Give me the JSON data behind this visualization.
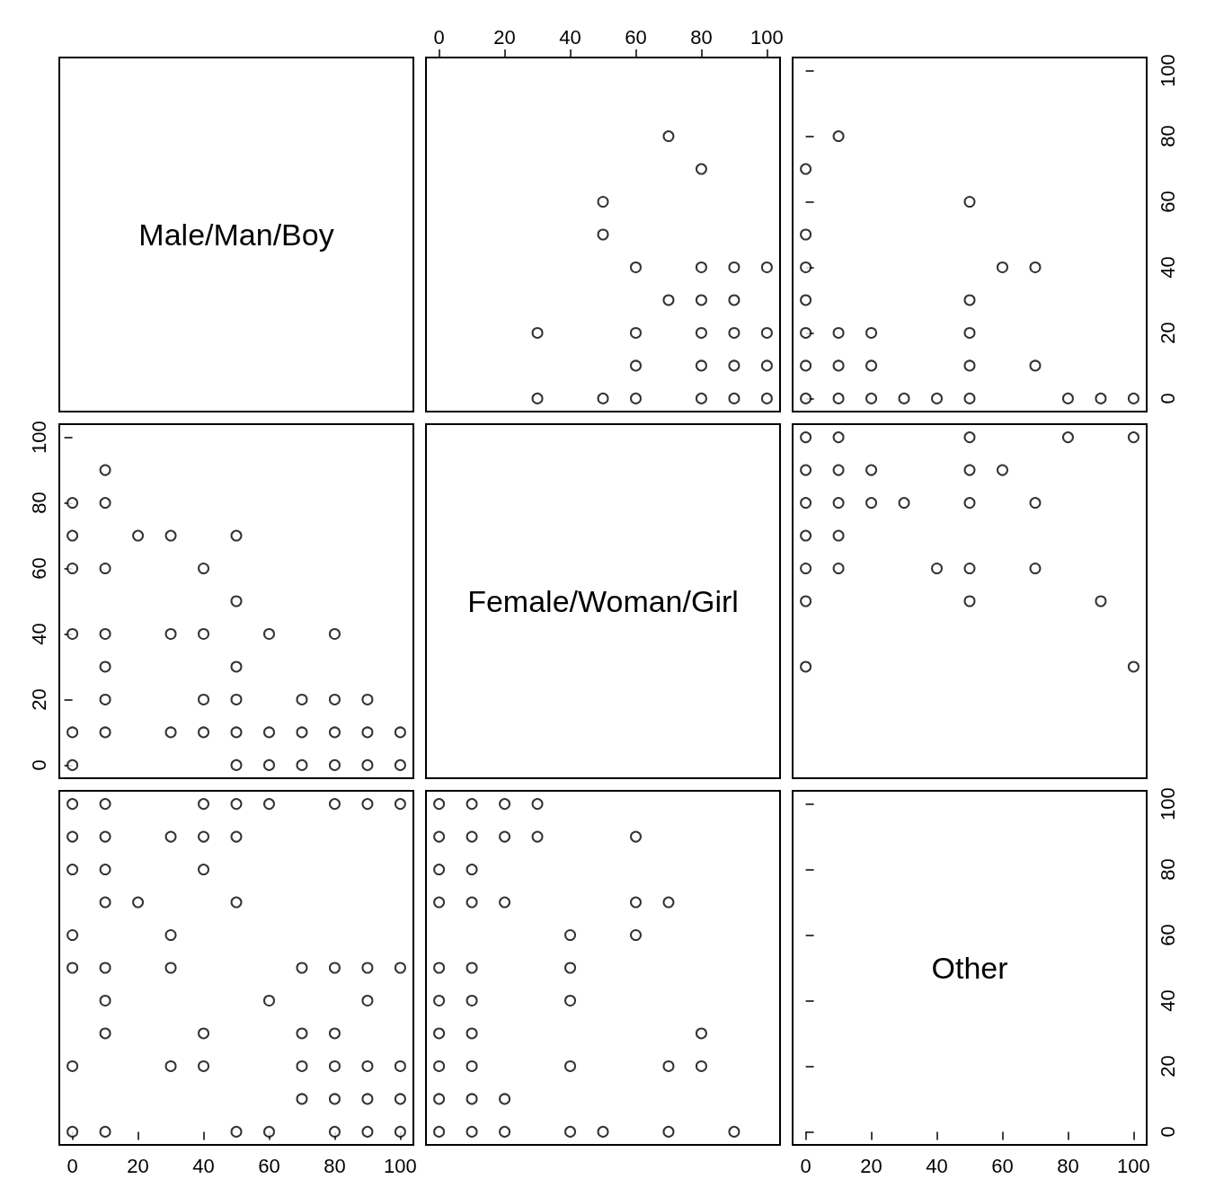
{
  "chart_data": [
    {
      "type": "other",
      "title": "Male/Man/Boy"
    },
    {
      "type": "scatter",
      "xlim": [
        -4,
        104
      ],
      "x2lim": [
        -4,
        104
      ],
      "x2ticks": [
        0,
        20,
        40,
        60,
        80,
        100
      ],
      "ylim": [
        -4,
        104
      ],
      "tick_labels": "x",
      "marker": "circle",
      "x": [
        30,
        30,
        50,
        50,
        50,
        60,
        60,
        60,
        60,
        70,
        70,
        80,
        80,
        80,
        80,
        80,
        80,
        90,
        90,
        90,
        90,
        90,
        100,
        100,
        100,
        100
      ],
      "series": [
        {
          "color": "#000000",
          "values": [
            20,
            0,
            60,
            50,
            0,
            40,
            20,
            10,
            0,
            80,
            30,
            70,
            40,
            30,
            20,
            10,
            0,
            40,
            30,
            20,
            10,
            0,
            40,
            20,
            10,
            0
          ]
        }
      ]
    },
    {
      "type": "scatter",
      "xlim": [
        -4,
        104
      ],
      "y2lim": [
        -4,
        104
      ],
      "y2ticks": [
        0,
        20,
        40,
        60,
        80,
        100
      ],
      "tick_labels": "y",
      "marker": "circle",
      "x": [
        0,
        0,
        0,
        0,
        0,
        0,
        0,
        10,
        10,
        10,
        10,
        20,
        20,
        20,
        30,
        40,
        50,
        50,
        50,
        50,
        50,
        60,
        70,
        70,
        80,
        90,
        100
      ],
      "series": [
        {
          "color": "#000000",
          "axis": "y2",
          "values": [
            70,
            50,
            40,
            30,
            20,
            10,
            0,
            80,
            20,
            10,
            0,
            20,
            10,
            0,
            0,
            0,
            60,
            30,
            20,
            10,
            0,
            40,
            40,
            10,
            0,
            0,
            0
          ]
        }
      ]
    },
    {
      "type": "scatter",
      "xlim": [
        -4,
        104
      ],
      "ylim": [
        -4,
        104
      ],
      "yticks": [
        0,
        20,
        40,
        60,
        80,
        100
      ],
      "tick_labels": "y",
      "marker": "circle",
      "x": [
        0,
        0,
        0,
        0,
        0,
        0,
        10,
        10,
        10,
        10,
        10,
        10,
        10,
        20,
        30,
        30,
        30,
        40,
        40,
        40,
        40,
        50,
        50,
        50,
        50,
        50,
        50,
        60,
        60,
        60,
        70,
        70,
        70,
        80,
        80,
        80,
        80,
        90,
        90,
        90,
        100,
        100
      ],
      "series": [
        {
          "color": "#000000",
          "values": [
            80,
            70,
            60,
            40,
            10,
            0,
            90,
            80,
            60,
            40,
            30,
            20,
            10,
            70,
            70,
            40,
            10,
            60,
            40,
            20,
            10,
            70,
            50,
            30,
            20,
            10,
            0,
            40,
            10,
            0,
            20,
            10,
            0,
            40,
            20,
            10,
            0,
            20,
            10,
            0,
            10,
            0
          ]
        }
      ]
    },
    {
      "type": "other",
      "title": "Female/Woman/Girl"
    },
    {
      "type": "scatter",
      "xlim": [
        -4,
        104
      ],
      "ylim": [
        -4,
        104
      ],
      "tick_labels": false,
      "marker": "circle",
      "x": [
        0,
        0,
        0,
        0,
        0,
        0,
        0,
        10,
        10,
        10,
        10,
        10,
        20,
        20,
        30,
        40,
        50,
        50,
        50,
        50,
        50,
        60,
        70,
        70,
        80,
        90,
        100,
        100
      ],
      "series": [
        {
          "color": "#000000",
          "values": [
            100,
            90,
            80,
            70,
            60,
            50,
            30,
            100,
            90,
            80,
            70,
            60,
            90,
            80,
            80,
            60,
            100,
            90,
            80,
            60,
            50,
            90,
            80,
            60,
            100,
            50,
            100,
            30
          ]
        }
      ]
    },
    {
      "type": "scatter",
      "xlim": [
        -4,
        104
      ],
      "xticks": [
        0,
        20,
        40,
        60,
        80,
        100
      ],
      "ylim": [
        -4,
        104
      ],
      "tick_labels": "x",
      "marker": "circle",
      "x": [
        0,
        0,
        0,
        0,
        0,
        0,
        0,
        10,
        10,
        10,
        10,
        10,
        10,
        10,
        10,
        20,
        30,
        30,
        30,
        30,
        40,
        40,
        40,
        40,
        40,
        50,
        50,
        50,
        50,
        60,
        60,
        60,
        70,
        70,
        70,
        70,
        80,
        80,
        80,
        80,
        80,
        80,
        90,
        90,
        90,
        90,
        90,
        90,
        100,
        100,
        100,
        100,
        100
      ],
      "series": [
        {
          "color": "#000000",
          "values": [
            100,
            90,
            80,
            60,
            50,
            20,
            0,
            100,
            90,
            80,
            70,
            50,
            40,
            30,
            0,
            70,
            90,
            60,
            50,
            20,
            100,
            90,
            80,
            30,
            20,
            100,
            90,
            70,
            0,
            100,
            40,
            0,
            50,
            30,
            20,
            10,
            100,
            50,
            30,
            20,
            10,
            0,
            100,
            50,
            40,
            20,
            10,
            0,
            100,
            50,
            20,
            10,
            0
          ]
        }
      ]
    },
    {
      "type": "scatter",
      "xlim": [
        -4,
        104
      ],
      "ylim": [
        -4,
        104
      ],
      "tick_labels": false,
      "marker": "circle",
      "x": [
        0,
        0,
        0,
        0,
        0,
        0,
        0,
        0,
        0,
        0,
        10,
        10,
        10,
        10,
        10,
        10,
        10,
        10,
        10,
        10,
        20,
        20,
        20,
        20,
        20,
        30,
        30,
        40,
        40,
        40,
        40,
        40,
        50,
        60,
        60,
        60,
        70,
        70,
        70,
        80,
        80,
        90
      ],
      "series": [
        {
          "color": "#000000",
          "values": [
            100,
            90,
            80,
            70,
            50,
            40,
            30,
            20,
            10,
            0,
            100,
            90,
            80,
            70,
            50,
            40,
            30,
            20,
            10,
            0,
            100,
            90,
            70,
            10,
            0,
            100,
            90,
            60,
            50,
            40,
            20,
            0,
            0,
            90,
            70,
            60,
            70,
            20,
            0,
            30,
            20,
            0
          ]
        }
      ]
    },
    {
      "type": "scatter",
      "title": "Other",
      "xlim": [
        -4,
        104
      ],
      "xticks": [
        0,
        20,
        40,
        60,
        80,
        100
      ],
      "y2lim": [
        -4,
        104
      ],
      "y2ticks": [
        0,
        20,
        40,
        60,
        80,
        100
      ]
    }
  ]
}
